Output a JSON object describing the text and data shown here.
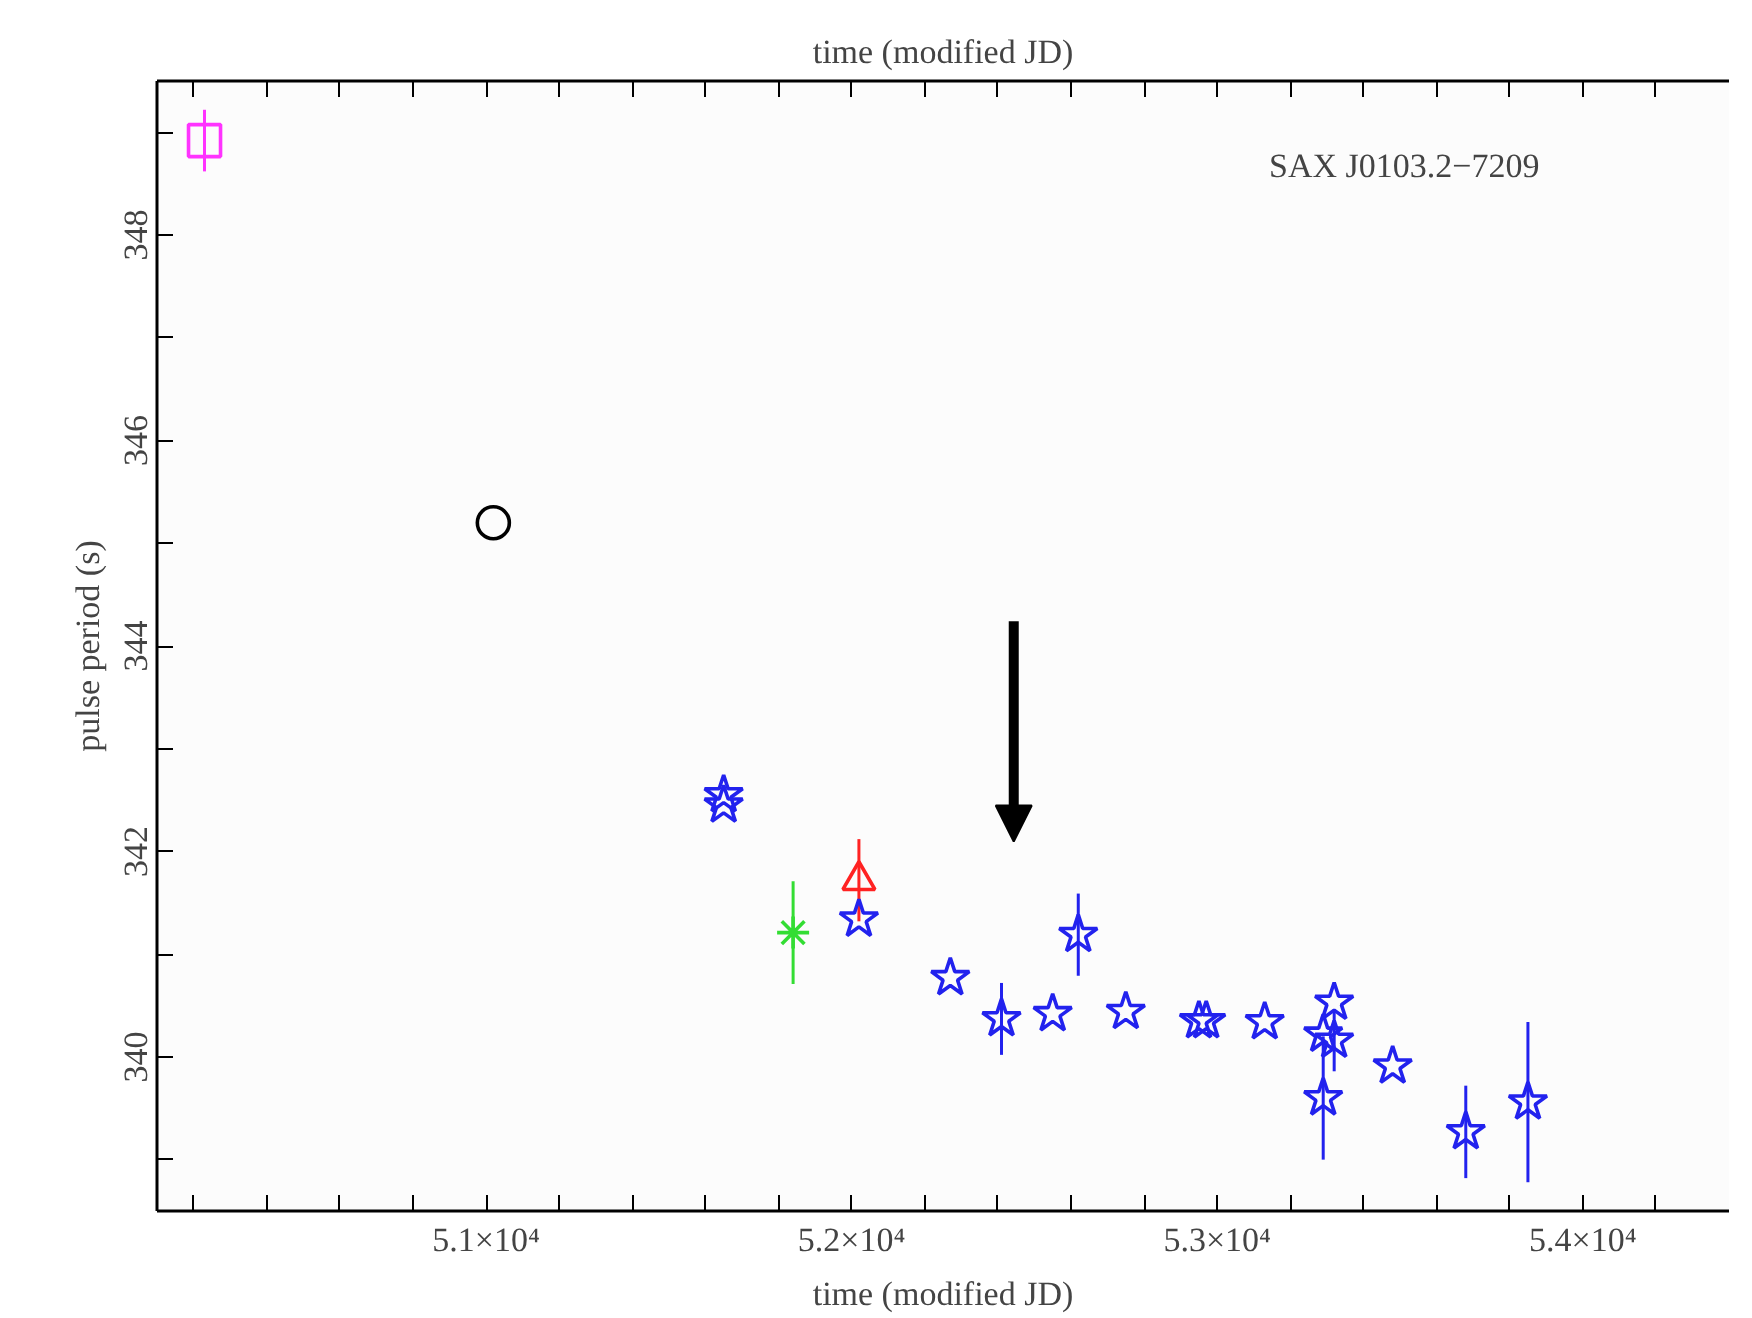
{
  "chart_data": {
    "type": "scatter",
    "xlabel": "time (modified JD)",
    "x2label": "time (modified JD)",
    "ylabel": "pulse period (s)",
    "xlim": [
      50100,
      54400
    ],
    "ylim": [
      338.5,
      349.5
    ],
    "xticks": [
      {
        "value": 50200,
        "label": null
      },
      {
        "value": 50400,
        "label": null
      },
      {
        "value": 50600,
        "label": null
      },
      {
        "value": 50800,
        "label": null
      },
      {
        "value": 51000,
        "label": "5.1×10⁴"
      },
      {
        "value": 51200,
        "label": null
      },
      {
        "value": 51400,
        "label": null
      },
      {
        "value": 51600,
        "label": null
      },
      {
        "value": 51800,
        "label": null
      },
      {
        "value": 52000,
        "label": "5.2×10⁴"
      },
      {
        "value": 52200,
        "label": null
      },
      {
        "value": 52400,
        "label": null
      },
      {
        "value": 52600,
        "label": null
      },
      {
        "value": 52800,
        "label": null
      },
      {
        "value": 53000,
        "label": "5.3×10⁴"
      },
      {
        "value": 53200,
        "label": null
      },
      {
        "value": 53400,
        "label": null
      },
      {
        "value": 53600,
        "label": null
      },
      {
        "value": 53800,
        "label": null
      },
      {
        "value": 54000,
        "label": "5.4×10⁴"
      },
      {
        "value": 54200,
        "label": null
      }
    ],
    "yticks": [
      {
        "value": 339,
        "label": null
      },
      340,
      {
        "value": 341,
        "label": null
      },
      342,
      {
        "value": 343,
        "label": null
      },
      344,
      {
        "value": 345,
        "label": null
      },
      346,
      {
        "value": 347,
        "label": null
      },
      348,
      {
        "value": 349,
        "label": null
      }
    ],
    "grid": false,
    "series": [
      {
        "marker": "square",
        "color": "#ff33ff",
        "x": [
          50230
        ],
        "values": [
          348.92
        ],
        "errors": [
          0.3
        ]
      },
      {
        "marker": "circle",
        "color": "#000000",
        "x": [
          51020
        ],
        "values": [
          345.2
        ]
      },
      {
        "marker": "cross",
        "color": "#33dd33",
        "x": [
          51840
        ],
        "values": [
          341.21
        ],
        "errors": [
          0.5
        ]
      },
      {
        "marker": "triangle",
        "color": "#ff2222",
        "x": [
          52020
        ],
        "values": [
          341.72
        ],
        "errors": [
          0.4
        ]
      },
      {
        "marker": "star",
        "color": "#2222ee",
        "x": [
          51650,
          51650,
          52020,
          52270,
          52410,
          52550,
          52620,
          52750,
          52950,
          52970,
          53130,
          53320,
          53290,
          53320,
          53290,
          53480,
          53680,
          53850
        ],
        "values": [
          342.55,
          342.45,
          341.34,
          340.77,
          340.37,
          340.42,
          341.19,
          340.44,
          340.35,
          340.35,
          340.34,
          340.53,
          340.22,
          340.16,
          339.6,
          339.91,
          339.27,
          339.56
        ],
        "errors": [
          null,
          null,
          null,
          null,
          0.35,
          null,
          0.4,
          null,
          null,
          null,
          null,
          null,
          null,
          0.3,
          0.6,
          null,
          0.45,
          0.78
        ]
      }
    ],
    "annotations": [
      "SAX J0103.2−7209"
    ]
  }
}
